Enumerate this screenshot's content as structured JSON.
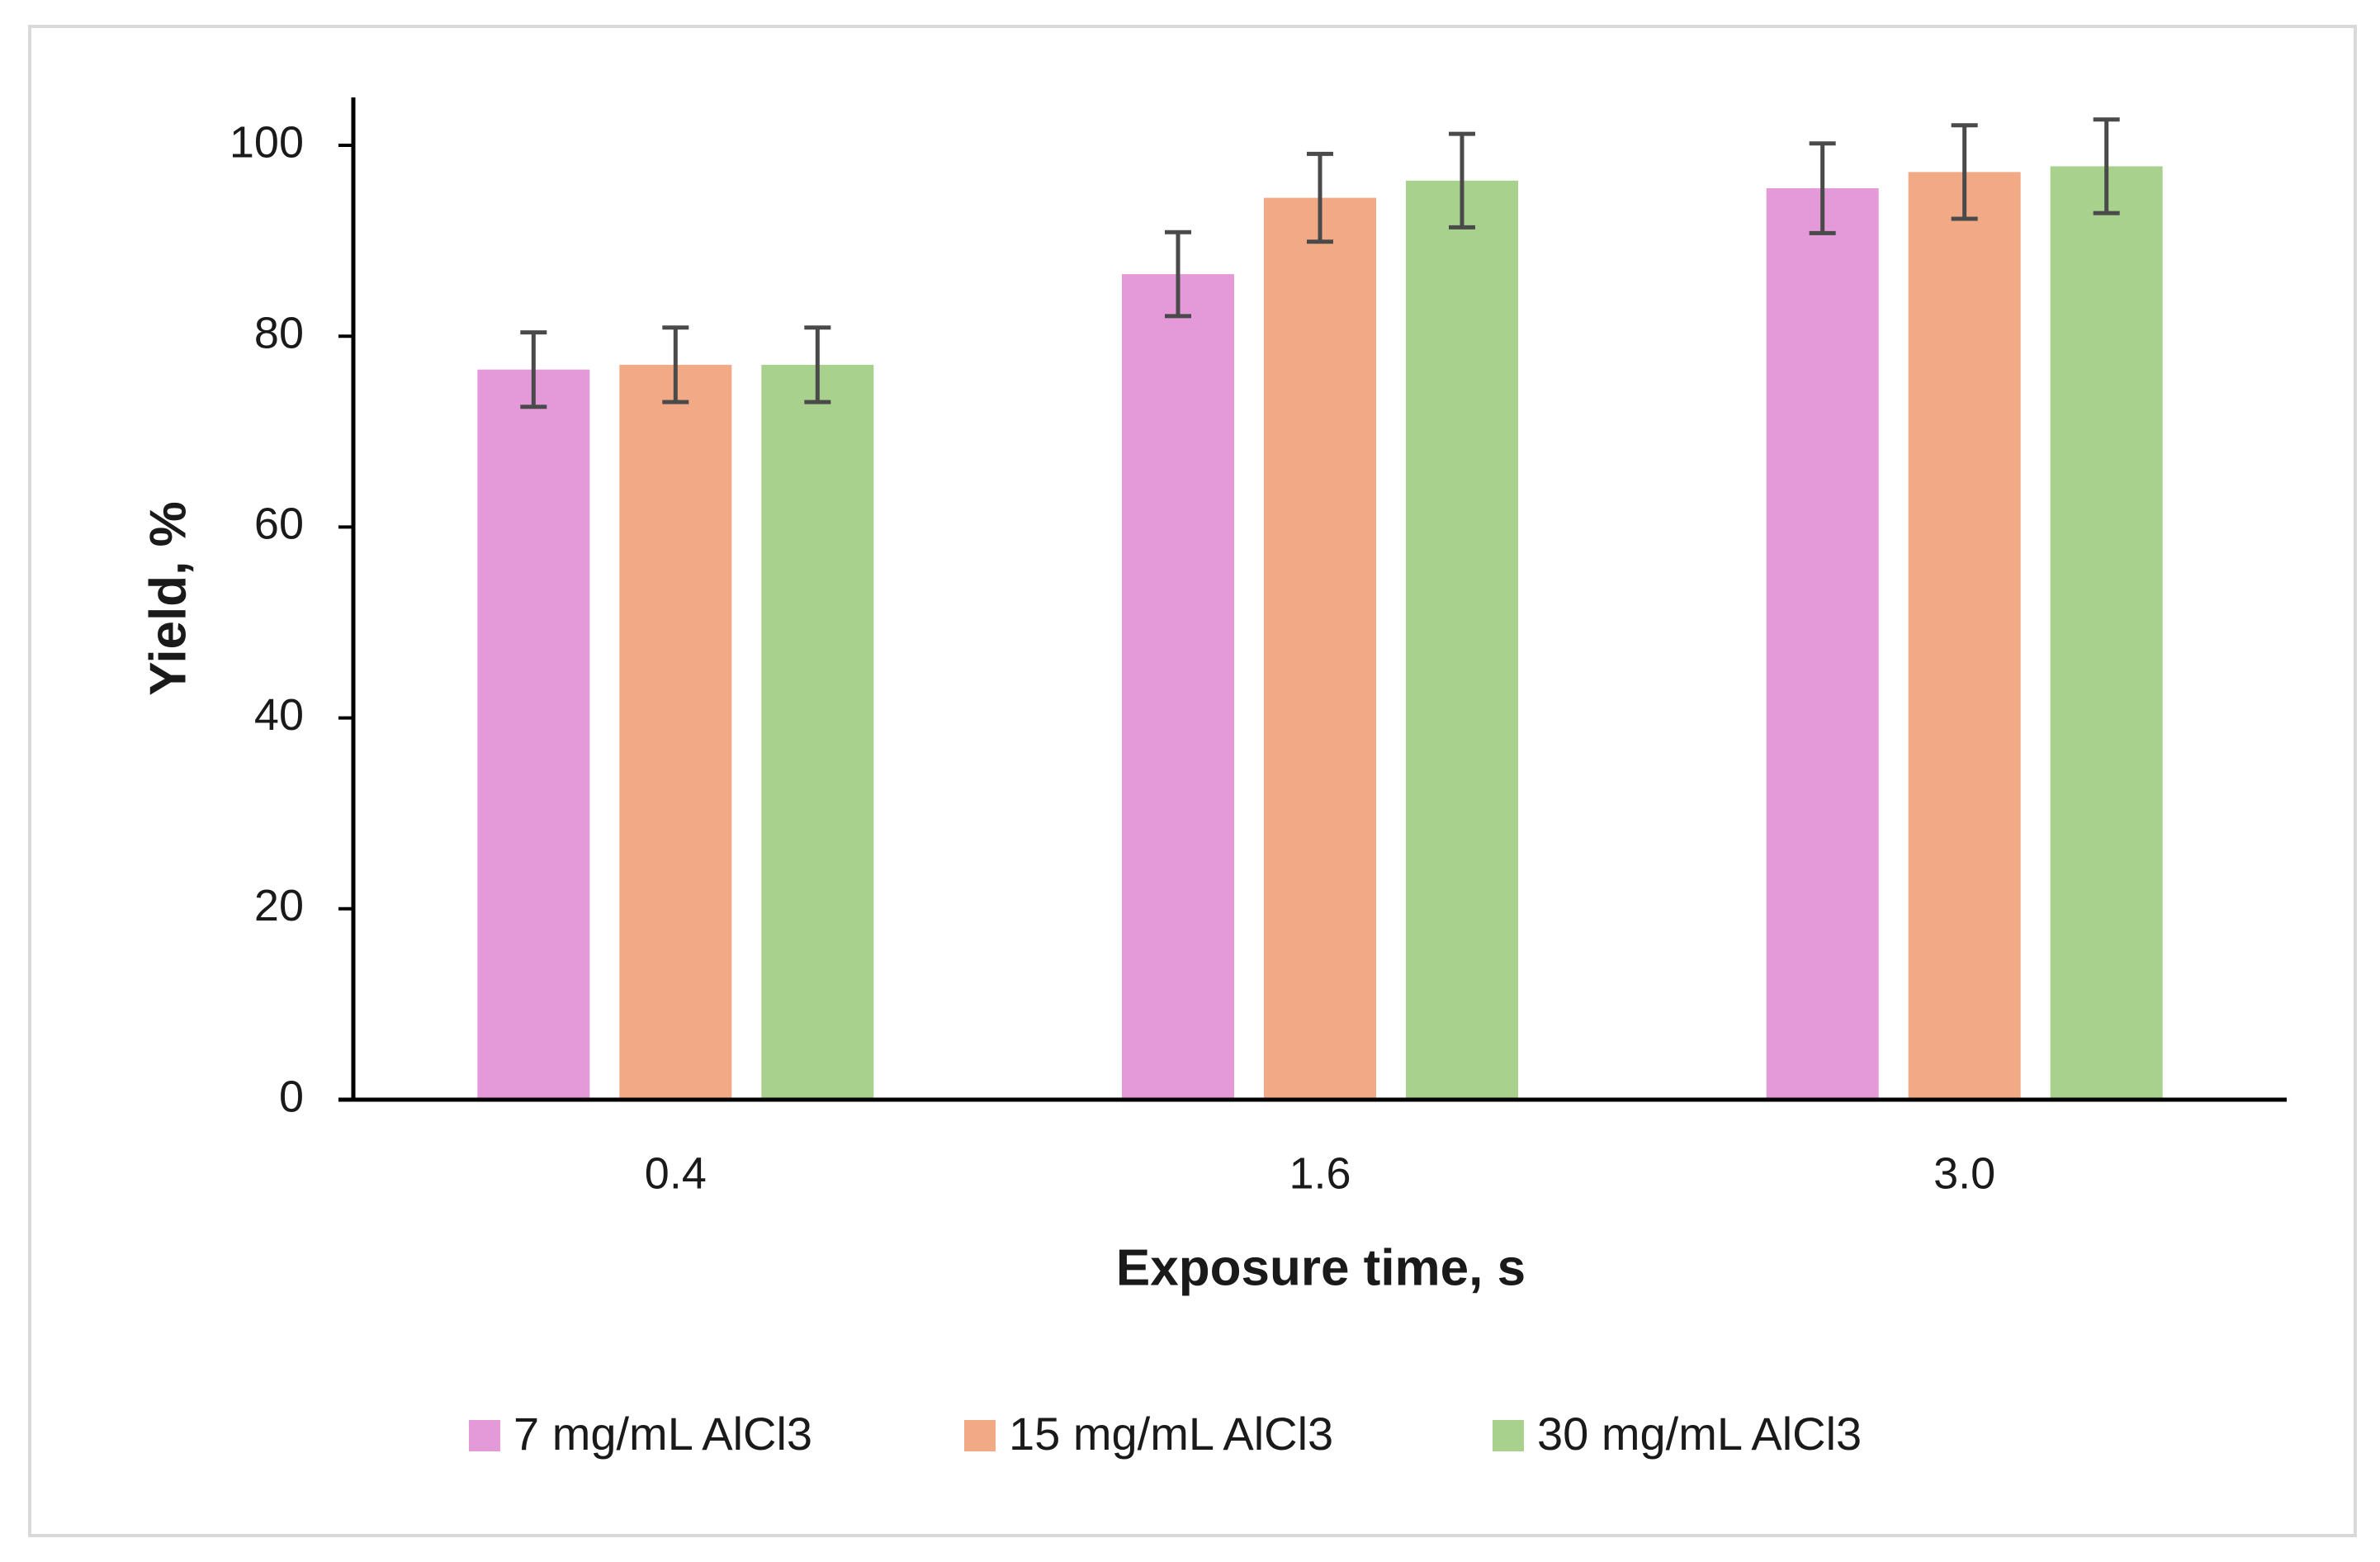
{
  "chart_data": {
    "type": "bar",
    "title": "",
    "xlabel": "Exposure time, s",
    "ylabel": "Yield, %",
    "categories": [
      "0.4",
      "1.6",
      "3.0"
    ],
    "ylim": [
      0,
      100
    ],
    "yticks": [
      "0",
      "20",
      "40",
      "60",
      "80",
      "100"
    ],
    "grid": false,
    "legend_position": "bottom",
    "series": [
      {
        "name": "7 mg/mL AlCl3",
        "color": "#e49ad9",
        "values": [
          76.5,
          86.5,
          95.5
        ],
        "errors": [
          3.9,
          4.4,
          4.7
        ]
      },
      {
        "name": "15 mg/mL AlCl3",
        "color": "#f2aa86",
        "values": [
          77.0,
          94.5,
          97.2
        ],
        "errors": [
          3.9,
          4.6,
          4.9
        ]
      },
      {
        "name": "30 mg/mL AlCl3",
        "color": "#a9d18e",
        "values": [
          77.0,
          96.3,
          97.8
        ],
        "errors": [
          3.9,
          4.9,
          4.9
        ]
      }
    ]
  }
}
